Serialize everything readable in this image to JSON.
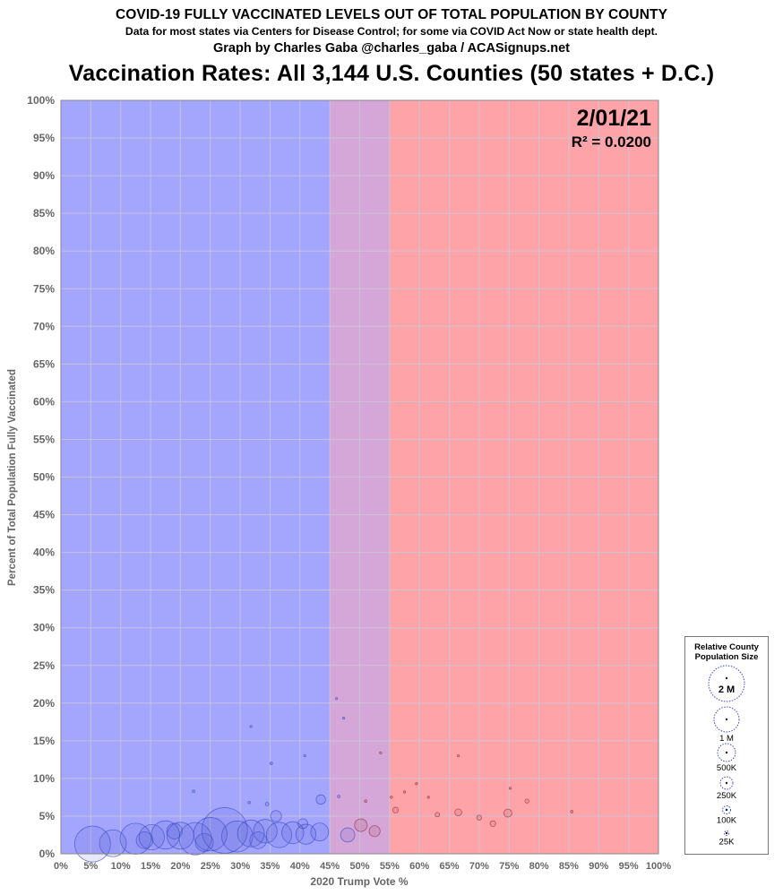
{
  "header": {
    "title": "COVID-19 FULLY VACCINATED LEVELS OUT OF TOTAL POPULATION BY COUNTY",
    "subtitle": "Data for most states via Centers for Disease Control; for some via COVID Act Now or state health dept.",
    "credit": "Graph by Charles Gaba @charles_gaba / ACASignups.net",
    "chart_title": "Vaccination Rates: All 3,144 U.S. Counties (50 states + D.C.)"
  },
  "annotations": {
    "date": "2/01/21",
    "r2_label": "R² = 0.0200"
  },
  "legend": {
    "title_line1": "Relative County",
    "title_line2": "Population Size",
    "sizes": [
      "2 M",
      "1 M",
      "500K",
      "250K",
      "100K",
      "25K"
    ]
  },
  "colors": {
    "dem_region": "#a4a6fd",
    "swing_region": "#d5a7d9",
    "gop_region": "#fea4a8",
    "dem_bubble": "#3a49c9",
    "gop_bubble": "#962a3c",
    "grid": "#c9c9d9"
  },
  "chart_data": {
    "type": "scatter",
    "title": "Vaccination Rates: All 3,144 U.S. Counties (50 states + D.C.)",
    "xlabel": "2020 Trump Vote %",
    "ylabel": "Percent of Total Population Fully Vaccinated",
    "xlim": [
      0,
      100
    ],
    "ylim": [
      0,
      100
    ],
    "x_ticks": [
      "0%",
      "5%",
      "10%",
      "15%",
      "20%",
      "25%",
      "30%",
      "35%",
      "40%",
      "45%",
      "50%",
      "55%",
      "60%",
      "65%",
      "70%",
      "75%",
      "80%",
      "85%",
      "90%",
      "95%",
      "100%"
    ],
    "y_ticks": [
      "0%",
      "5%",
      "10%",
      "15%",
      "20%",
      "25%",
      "30%",
      "35%",
      "40%",
      "45%",
      "50%",
      "55%",
      "60%",
      "65%",
      "70%",
      "75%",
      "80%",
      "85%",
      "90%",
      "95%",
      "100%"
    ],
    "grid": true,
    "regions": [
      {
        "from": 0,
        "to": 45,
        "color": "#a4a6fd"
      },
      {
        "from": 45,
        "to": 55,
        "color": "#d5a7d9"
      },
      {
        "from": 55,
        "to": 100,
        "color": "#fea4a8"
      }
    ],
    "points": [
      {
        "x": 5.3,
        "y": 1.3,
        "pop": 1600
      },
      {
        "x": 8.7,
        "y": 1.4,
        "pop": 900
      },
      {
        "x": 12.5,
        "y": 2.0,
        "pop": 1200
      },
      {
        "x": 15.2,
        "y": 2.2,
        "pop": 800
      },
      {
        "x": 17.5,
        "y": 2.5,
        "pop": 1000
      },
      {
        "x": 20.0,
        "y": 2.4,
        "pop": 900
      },
      {
        "x": 22.5,
        "y": 2.0,
        "pop": 1300
      },
      {
        "x": 25.0,
        "y": 2.6,
        "pop": 1400
      },
      {
        "x": 27.4,
        "y": 3.1,
        "pop": 2600
      },
      {
        "x": 29.5,
        "y": 2.3,
        "pop": 1200
      },
      {
        "x": 31.8,
        "y": 2.7,
        "pop": 900
      },
      {
        "x": 34.2,
        "y": 3.0,
        "pop": 700
      },
      {
        "x": 36.5,
        "y": 2.5,
        "pop": 800
      },
      {
        "x": 38.8,
        "y": 2.8,
        "pop": 600
      },
      {
        "x": 41.0,
        "y": 2.6,
        "pop": 500
      },
      {
        "x": 43.3,
        "y": 2.9,
        "pop": 400
      },
      {
        "x": 14.0,
        "y": 1.8,
        "pop": 350
      },
      {
        "x": 19.0,
        "y": 3.0,
        "pop": 300
      },
      {
        "x": 24.0,
        "y": 1.5,
        "pop": 400
      },
      {
        "x": 33.0,
        "y": 1.8,
        "pop": 350
      },
      {
        "x": 36.0,
        "y": 5.0,
        "pop": 150
      },
      {
        "x": 40.5,
        "y": 4.0,
        "pop": 120
      },
      {
        "x": 43.5,
        "y": 7.2,
        "pop": 110
      },
      {
        "x": 22.2,
        "y": 8.3,
        "pop": 8
      },
      {
        "x": 31.5,
        "y": 6.8,
        "pop": 8
      },
      {
        "x": 34.5,
        "y": 6.6,
        "pop": 15
      },
      {
        "x": 35.2,
        "y": 12.0,
        "pop": 8
      },
      {
        "x": 31.8,
        "y": 16.9,
        "pop": 6
      },
      {
        "x": 40.8,
        "y": 13.0,
        "pop": 6
      },
      {
        "x": 46.1,
        "y": 20.6,
        "pop": 5
      },
      {
        "x": 47.3,
        "y": 18.0,
        "pop": 5
      },
      {
        "x": 53.5,
        "y": 13.4,
        "pop": 5
      },
      {
        "x": 55.3,
        "y": 7.5,
        "pop": 7
      },
      {
        "x": 51.0,
        "y": 7.0,
        "pop": 8
      },
      {
        "x": 46.5,
        "y": 7.6,
        "pop": 8
      },
      {
        "x": 50.2,
        "y": 3.8,
        "pop": 200
      },
      {
        "x": 48.0,
        "y": 2.5,
        "pop": 250
      },
      {
        "x": 52.5,
        "y": 3.0,
        "pop": 150
      },
      {
        "x": 56.0,
        "y": 5.8,
        "pop": 40
      },
      {
        "x": 59.5,
        "y": 9.3,
        "pop": 6
      },
      {
        "x": 57.5,
        "y": 8.2,
        "pop": 6
      },
      {
        "x": 61.5,
        "y": 7.5,
        "pop": 6
      },
      {
        "x": 66.5,
        "y": 13.0,
        "pop": 5
      },
      {
        "x": 75.2,
        "y": 8.7,
        "pop": 6
      },
      {
        "x": 66.5,
        "y": 5.5,
        "pop": 60
      },
      {
        "x": 70.0,
        "y": 4.8,
        "pop": 30
      },
      {
        "x": 74.8,
        "y": 5.4,
        "pop": 80
      },
      {
        "x": 72.3,
        "y": 4.0,
        "pop": 40
      },
      {
        "x": 78.0,
        "y": 7.0,
        "pop": 20
      },
      {
        "x": 63.0,
        "y": 5.2,
        "pop": 25
      },
      {
        "x": 85.5,
        "y": 5.6,
        "pop": 8
      }
    ]
  }
}
